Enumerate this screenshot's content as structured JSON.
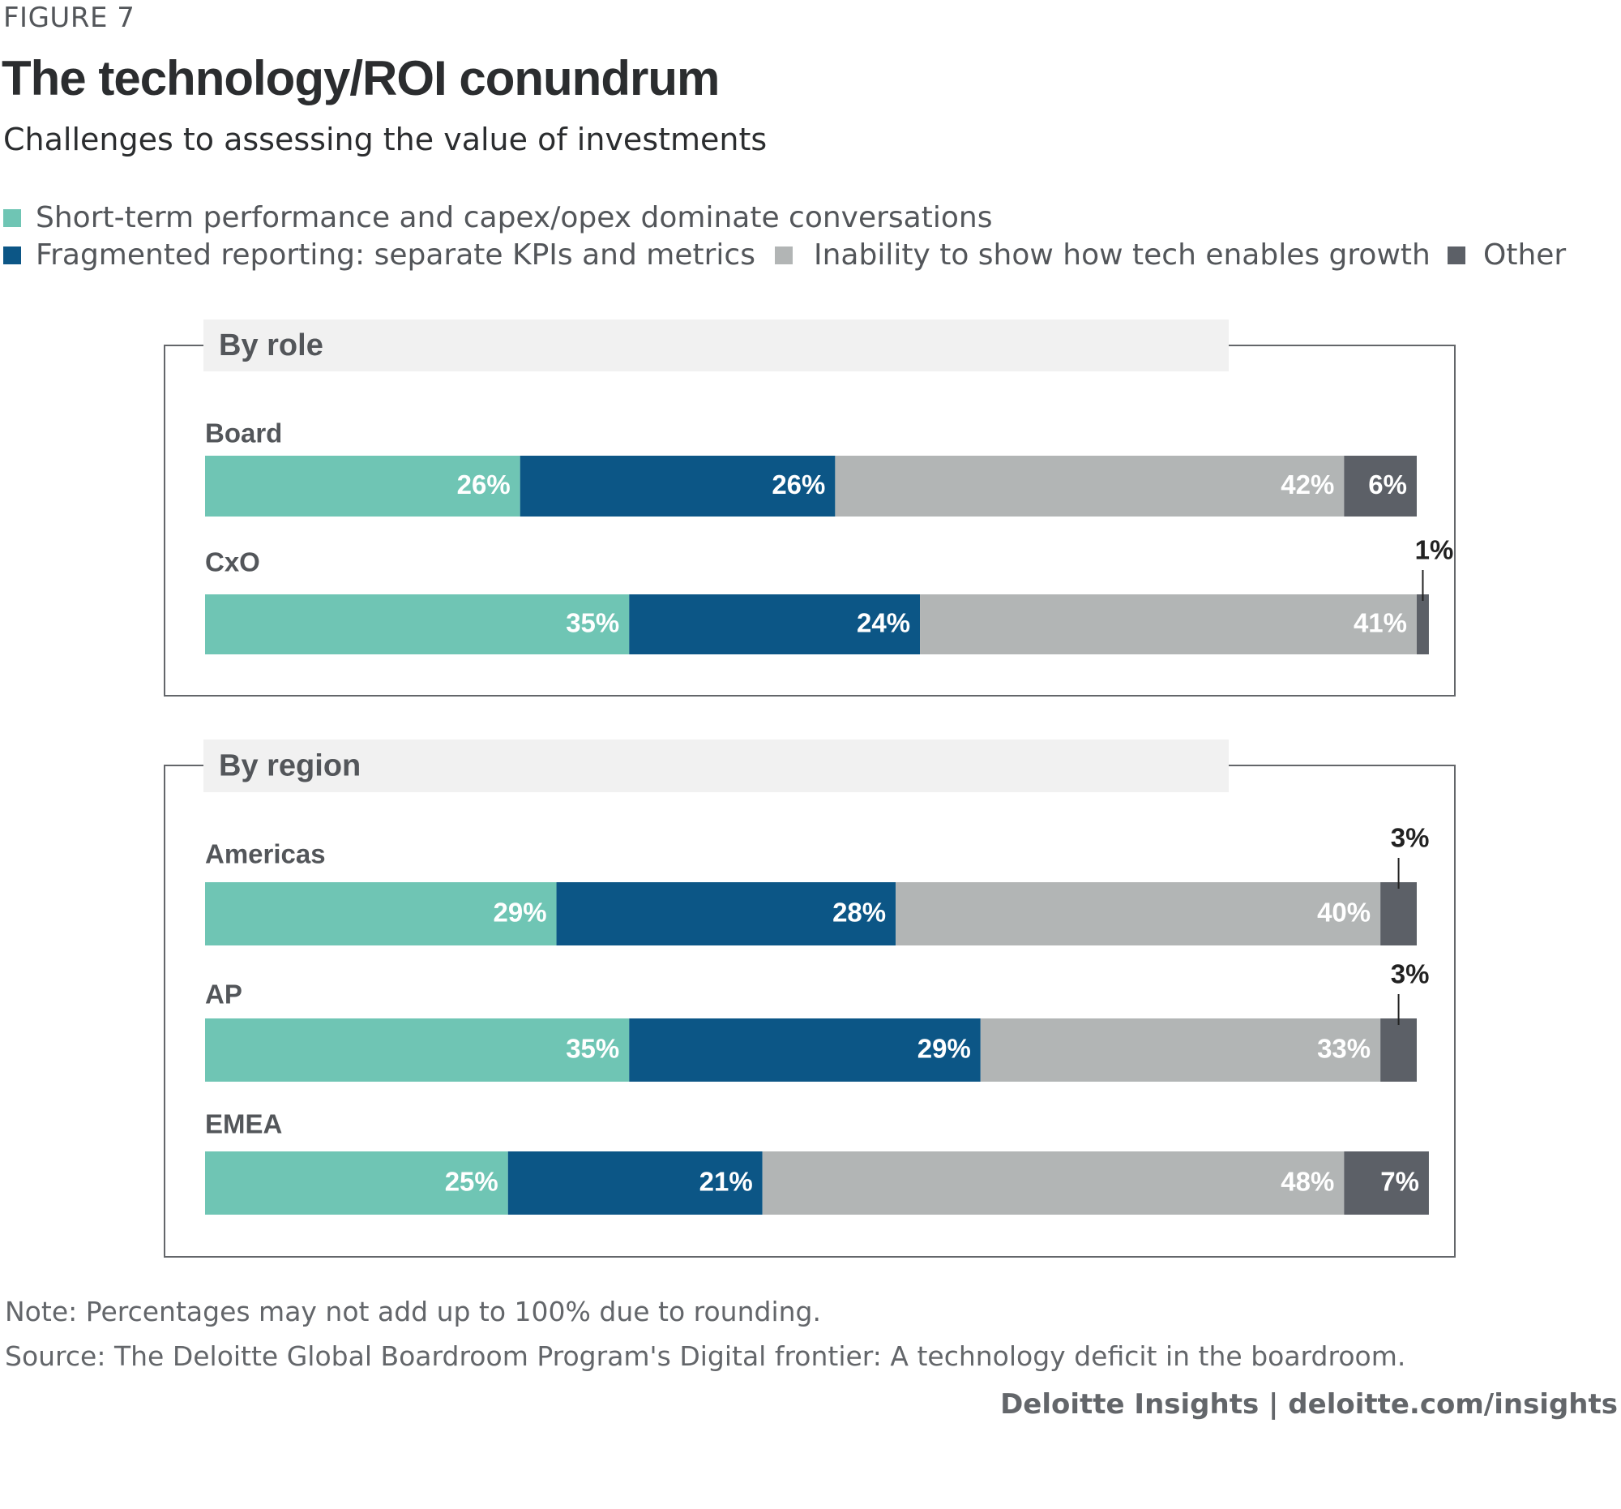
{
  "figure_label": "FIGURE 7",
  "chart_data": {
    "type": "bar",
    "stacked": true,
    "orientation": "horizontal",
    "title": "The technology/ROI conundrum",
    "subtitle": "Challenges to assessing the value of investments",
    "legend": [
      {
        "name": "Short-term performance and capex/opex dominate conversations",
        "color": "#6fc5b4"
      },
      {
        "name": "Fragmented reporting: separate KPIs and metrics",
        "color": "#0c5686"
      },
      {
        "name": "Inability to show how tech enables growth",
        "color": "#b2b5b5"
      },
      {
        "name": "Other",
        "color": "#5c6067"
      }
    ],
    "groups": [
      {
        "title": "By role",
        "rows": [
          {
            "label": "Board",
            "values": [
              26,
              26,
              42,
              6
            ],
            "value_labels": [
              "26%",
              "26%",
              "42%",
              "6%"
            ]
          },
          {
            "label": "CxO",
            "values": [
              35,
              24,
              41,
              1
            ],
            "value_labels": [
              "35%",
              "24%",
              "41%",
              "1%"
            ]
          }
        ]
      },
      {
        "title": "By region",
        "rows": [
          {
            "label": "Americas",
            "values": [
              29,
              28,
              40,
              3
            ],
            "value_labels": [
              "29%",
              "28%",
              "40%",
              "3%"
            ]
          },
          {
            "label": "AP",
            "values": [
              35,
              29,
              33,
              3
            ],
            "value_labels": [
              "35%",
              "29%",
              "33%",
              "3%"
            ]
          },
          {
            "label": "EMEA",
            "values": [
              25,
              21,
              48,
              7
            ],
            "value_labels": [
              "25%",
              "21%",
              "48%",
              "7%"
            ]
          }
        ]
      }
    ]
  },
  "note": "Note: Percentages may not add up to 100% due to rounding.",
  "source": "Source: The Deloitte Global Boardroom Program's Digital frontier: A technology deficit in the boardroom.",
  "credit": "Deloitte Insights | deloitte.com/insights"
}
